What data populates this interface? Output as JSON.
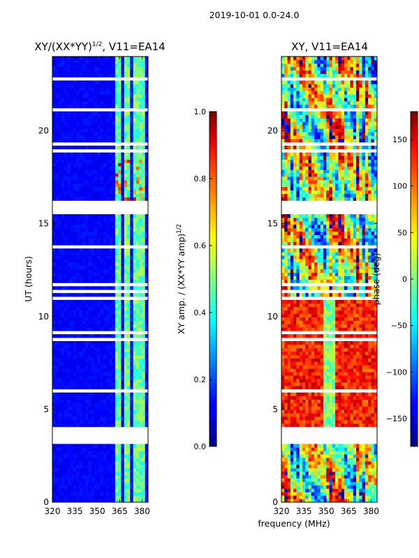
{
  "suptitle": "2019-10-01 0.0-24.0",
  "xlabel_shared": "frequency (MHz)",
  "chart_data": [
    {
      "type": "heatmap",
      "title": "XY/(XX*YY)",
      "title_exponent": "1/2",
      "title_suffix": ", V11=EA14",
      "xlabel": "",
      "ylabel": "UT (hours)",
      "xlim": [
        320,
        384
      ],
      "ylim": [
        0,
        24
      ],
      "xticks": [
        320,
        335,
        350,
        365,
        380
      ],
      "yticks": [
        0,
        5,
        10,
        15,
        20
      ],
      "colorbar": {
        "label": "XY amp. / (XX*YY amp)",
        "label_exponent": "1/2",
        "range": [
          0.0,
          1.0
        ],
        "ticks": [
          "0.0",
          "0.2",
          "0.4",
          "0.6",
          "0.8",
          "1.0"
        ],
        "tick_values": [
          0.0,
          0.2,
          0.4,
          0.6,
          0.8,
          1.0
        ],
        "colormap": "jet"
      },
      "flagged_gaps_hours": [
        [
          3.1,
          4.0
        ],
        [
          15.5,
          16.2
        ]
      ],
      "bright_channels_mhz": [
        [
          362,
          366
        ],
        [
          368,
          372
        ],
        [
          374,
          377
        ],
        [
          378,
          381
        ]
      ]
    },
    {
      "type": "heatmap",
      "title": "XY, V11=EA14",
      "xlabel": "frequency (MHz)",
      "ylabel": "",
      "xlim": [
        320,
        384
      ],
      "ylim": [
        0,
        24
      ],
      "xticks": [
        320,
        335,
        350,
        365,
        380
      ],
      "yticks": [
        0,
        5,
        10,
        15,
        20
      ],
      "colorbar": {
        "label": "phase (deg)",
        "range": [
          -180,
          180
        ],
        "ticks": [
          "150",
          "100",
          "50",
          "0",
          "−50",
          "−100",
          "−150"
        ],
        "tick_values": [
          150,
          100,
          50,
          0,
          -50,
          -100,
          -150
        ],
        "colormap": "jet"
      },
      "flagged_gaps_hours": [
        [
          3.1,
          4.0
        ],
        [
          15.5,
          16.2
        ]
      ]
    }
  ]
}
